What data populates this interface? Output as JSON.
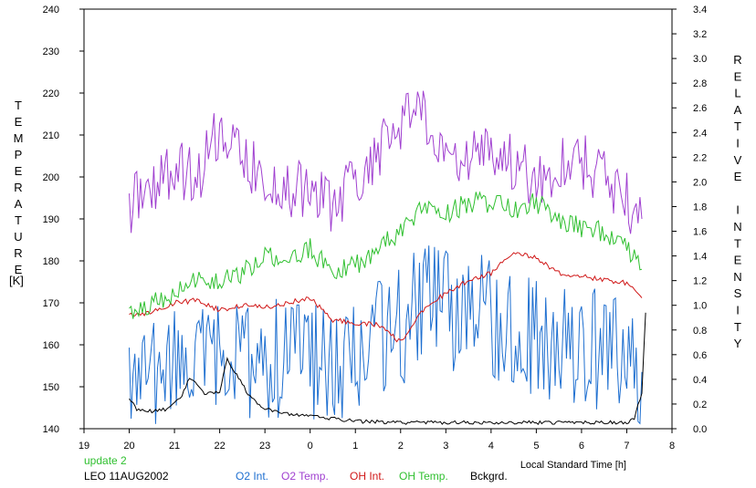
{
  "chart_data": {
    "type": "line",
    "left_axis_label": "TEMPERATURE",
    "left_axis_unit": "[K]",
    "right_axis_label": "RELATIVE INTENSITY",
    "xlabel": "Local Standard Time [h]",
    "xlim": [
      19,
      8
    ],
    "x_tick_labels": [
      "19",
      "20",
      "21",
      "22",
      "23",
      "0",
      "1",
      "2",
      "3",
      "4",
      "5",
      "6",
      "7",
      "8"
    ],
    "y_left_lim": [
      140,
      240
    ],
    "y_left_ticks": [
      "140",
      "150",
      "160",
      "170",
      "180",
      "190",
      "200",
      "210",
      "220",
      "230",
      "240"
    ],
    "y_right_lim": [
      0.0,
      3.4
    ],
    "y_right_ticks": [
      "0.0",
      "0.2",
      "0.4",
      "0.6",
      "0.8",
      "1.0",
      "1.2",
      "1.4",
      "1.6",
      "1.8",
      "2.0",
      "2.2",
      "2.4",
      "2.6",
      "2.8",
      "3.0",
      "3.2",
      "3.4"
    ],
    "grid": false,
    "legend_position": "bottom",
    "note": "update 2",
    "station_label": "LEO 11AUG2002",
    "series": [
      {
        "name": "O2 Int.",
        "color": "#1e6fd0",
        "axis": "right",
        "x": [
          "20:00",
          "20:30",
          "21:00",
          "21:30",
          "22:00",
          "22:30",
          "23:00",
          "23:30",
          "0:00",
          "0:30",
          "1:00",
          "1:30",
          "2:00",
          "2:30",
          "3:00",
          "3:30",
          "4:00",
          "4:30",
          "5:00",
          "5:30",
          "6:00",
          "6:30",
          "7:00",
          "7:20"
        ],
        "values": [
          0.4,
          0.42,
          0.46,
          0.52,
          0.54,
          0.58,
          0.56,
          0.6,
          0.58,
          0.52,
          0.6,
          0.72,
          0.8,
          1.06,
          0.98,
          0.92,
          0.9,
          0.86,
          0.74,
          0.68,
          0.68,
          0.62,
          0.52,
          0.46
        ]
      },
      {
        "name": "O2 Temp.",
        "color": "#a040d0",
        "axis": "left",
        "x": [
          "20:00",
          "20:30",
          "21:00",
          "21:30",
          "22:00",
          "22:30",
          "23:00",
          "23:30",
          "0:00",
          "0:30",
          "1:00",
          "1:30",
          "2:00",
          "2:30",
          "3:00",
          "3:30",
          "4:00",
          "4:30",
          "5:00",
          "5:30",
          "6:00",
          "6:30",
          "7:00",
          "7:20"
        ],
        "values": [
          193,
          198,
          202,
          200,
          212,
          204,
          200,
          196,
          198,
          192,
          200,
          205,
          213,
          214,
          205,
          204,
          205,
          203,
          199,
          203,
          204,
          200,
          194,
          190
        ]
      },
      {
        "name": "OH Int.",
        "color": "#d01818",
        "axis": "right",
        "x": [
          "20:00",
          "20:30",
          "21:00",
          "21:30",
          "22:00",
          "22:30",
          "23:00",
          "23:30",
          "0:00",
          "0:30",
          "1:00",
          "1:30",
          "2:00",
          "2:30",
          "3:00",
          "3:30",
          "4:00",
          "4:30",
          "5:00",
          "5:30",
          "6:00",
          "6:30",
          "7:00",
          "7:20"
        ],
        "values": [
          0.92,
          0.94,
          1.02,
          1.04,
          0.96,
          1.0,
          0.98,
          1.02,
          1.06,
          0.88,
          0.86,
          0.84,
          0.7,
          0.96,
          1.1,
          1.2,
          1.26,
          1.44,
          1.38,
          1.26,
          1.24,
          1.2,
          1.18,
          1.06
        ]
      },
      {
        "name": "OH Temp.",
        "color": "#30c030",
        "axis": "left",
        "x": [
          "20:00",
          "20:30",
          "21:00",
          "21:30",
          "22:00",
          "22:30",
          "23:00",
          "23:30",
          "0:00",
          "0:30",
          "1:00",
          "1:30",
          "2:00",
          "2:30",
          "3:00",
          "3:30",
          "4:00",
          "4:30",
          "5:00",
          "5:30",
          "6:00",
          "6:30",
          "7:00",
          "7:20"
        ],
        "values": [
          168,
          170,
          172,
          176,
          175,
          177,
          181,
          181,
          183,
          177,
          179,
          183,
          187,
          193,
          191,
          194,
          194,
          192,
          194,
          190,
          188,
          187,
          183,
          178
        ]
      },
      {
        "name": "Bckgrd.",
        "color": "#000000",
        "axis": "right",
        "x": [
          "20:00",
          "20:10",
          "20:30",
          "20:50",
          "21:10",
          "21:20",
          "21:40",
          "22:00",
          "22:10",
          "22:20",
          "22:40",
          "23:00",
          "23:30",
          "0:00",
          "0:30",
          "1:00",
          "2:00",
          "3:00",
          "4:00",
          "5:00",
          "6:00",
          "7:00",
          "7:10",
          "7:20",
          "7:25"
        ],
        "values": [
          0.24,
          0.16,
          0.14,
          0.16,
          0.26,
          0.42,
          0.28,
          0.3,
          0.56,
          0.46,
          0.26,
          0.16,
          0.12,
          0.1,
          0.08,
          0.06,
          0.05,
          0.05,
          0.05,
          0.05,
          0.05,
          0.05,
          0.08,
          0.3,
          0.94
        ]
      }
    ]
  }
}
